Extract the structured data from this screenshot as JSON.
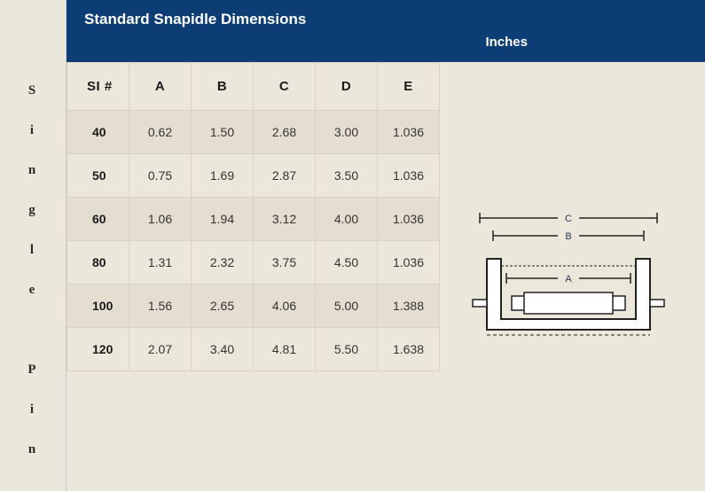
{
  "sidebar": {
    "label_chars": [
      "S",
      "i",
      "n",
      "g",
      "l",
      "e",
      " ",
      "P",
      "i",
      "n"
    ]
  },
  "header": {
    "title": "Standard Snapidle Dimensions",
    "units": "Inches",
    "background_color": "#0c3d75",
    "text_color": "#ffffff"
  },
  "table": {
    "columns": [
      "SI #",
      "A",
      "B",
      "C",
      "D",
      "E"
    ],
    "rows": [
      [
        "40",
        "0.62",
        "1.50",
        "2.68",
        "3.00",
        "1.036"
      ],
      [
        "50",
        "0.75",
        "1.69",
        "2.87",
        "3.50",
        "1.036"
      ],
      [
        "60",
        "1.06",
        "1.94",
        "3.12",
        "4.00",
        "1.036"
      ],
      [
        "80",
        "1.31",
        "2.32",
        "3.75",
        "4.50",
        "1.036"
      ],
      [
        "100",
        "1.56",
        "2.65",
        "4.06",
        "5.00",
        "1.388"
      ],
      [
        "120",
        "2.07",
        "3.40",
        "4.81",
        "5.50",
        "1.638"
      ]
    ],
    "row_odd_bg": "#e4ded0",
    "row_even_bg": "#ece7db",
    "border_color": "#d8d2c4",
    "header_fontsize": 15,
    "cell_fontsize": 14
  },
  "diagram": {
    "type": "infographic",
    "stroke_color": "#222222",
    "fill_color": "#ffffff",
    "dash_pattern": "4 3",
    "label_color": "#283a5a",
    "label_fontsize": 11,
    "labels": {
      "A": "A",
      "B": "B",
      "C": "C"
    }
  },
  "page": {
    "background_color": "#ece7db"
  }
}
